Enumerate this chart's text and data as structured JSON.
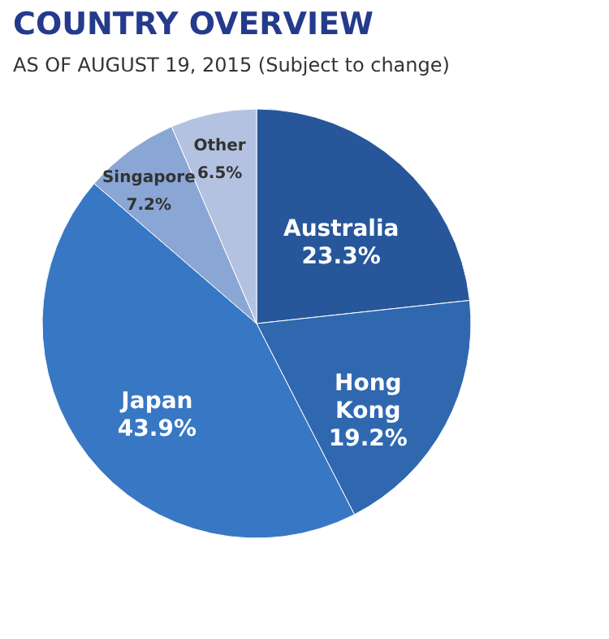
{
  "chart_data": {
    "type": "pie",
    "title": "COUNTRY OVERVIEW",
    "subtitle": "AS OF AUGUST 19, 2015 (Subject to change)",
    "categories": [
      "Australia",
      "Hong Kong",
      "Japan",
      "Singapore",
      "Other"
    ],
    "values": [
      23.3,
      19.2,
      43.9,
      7.2,
      6.5
    ],
    "colors": [
      "#27579a",
      "#3068b0",
      "#3877c4",
      "#8aa6d4",
      "#b3c2e0"
    ],
    "value_labels": [
      "23.3%",
      "19.2%",
      "43.9%",
      "7.2%",
      "6.5%"
    ],
    "legend": false
  }
}
